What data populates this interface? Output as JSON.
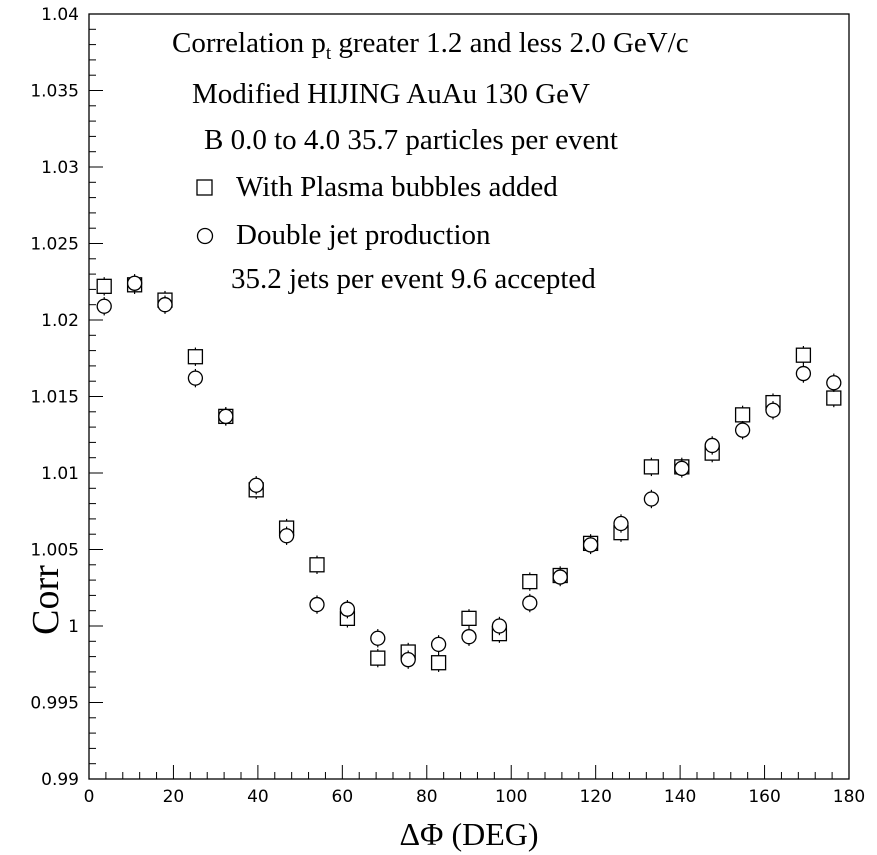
{
  "chart_data": {
    "type": "scatter",
    "xlabel": "ΔΦ (DEG)",
    "ylabel": "Corr",
    "xlim": [
      0,
      180
    ],
    "ylim": [
      0.99,
      1.04
    ],
    "x_ticks": [
      "0",
      "20",
      "40",
      "60",
      "80",
      "100",
      "120",
      "140",
      "160",
      "180"
    ],
    "y_ticks": [
      "0.99",
      "0.995",
      "1",
      "1.005",
      "1.01",
      "1.015",
      "1.02",
      "1.025",
      "1.03",
      "1.035",
      "1.04"
    ],
    "grid": false,
    "annotation": {
      "line1_pre": "Correlation p",
      "line1_sub": "t",
      "line1_post": " greater 1.2 and less 2.0 GeV/c",
      "line2": "Modified HIJING AuAu 130 GeV",
      "line3": "B 0.0 to 4.0  35.7 particles per event",
      "line6": "35.2 jets per event 9.6 accepted"
    },
    "series": [
      {
        "name": "With Plasma bubbles added",
        "marker": "square",
        "x": [
          3.6,
          10.8,
          18.0,
          25.2,
          32.4,
          39.6,
          46.8,
          54.0,
          61.2,
          68.4,
          75.6,
          82.8,
          90.0,
          97.2,
          104.4,
          111.6,
          118.8,
          126.0,
          133.2,
          140.4,
          147.6,
          154.8,
          162.0,
          169.2,
          176.4
        ],
        "y": [
          1.0222,
          1.0223,
          1.0213,
          1.0176,
          1.0137,
          1.0089,
          1.0064,
          1.004,
          1.0005,
          0.9979,
          0.9983,
          0.9976,
          1.0005,
          0.9995,
          1.0029,
          1.0033,
          1.0054,
          1.0061,
          1.0104,
          1.0104,
          1.0113,
          1.0138,
          1.0146,
          1.0177,
          1.0149
        ],
        "err": [
          0.0006,
          0.0006,
          0.0006,
          0.0006,
          0.0006,
          0.0006,
          0.0006,
          0.0006,
          0.0006,
          0.0006,
          0.0006,
          0.0006,
          0.0006,
          0.0006,
          0.0006,
          0.0006,
          0.0006,
          0.0006,
          0.0006,
          0.0006,
          0.0006,
          0.0006,
          0.0006,
          0.0006,
          0.0006
        ]
      },
      {
        "name": "Double jet production",
        "marker": "circle",
        "x": [
          3.6,
          10.8,
          18.0,
          25.2,
          32.4,
          39.6,
          46.8,
          54.0,
          61.2,
          68.4,
          75.6,
          82.8,
          90.0,
          97.2,
          104.4,
          111.6,
          118.8,
          126.0,
          133.2,
          140.4,
          147.6,
          154.8,
          162.0,
          169.2,
          176.4
        ],
        "y": [
          1.0209,
          1.0224,
          1.021,
          1.0162,
          1.0137,
          1.0092,
          1.0059,
          1.0014,
          1.0011,
          0.9992,
          0.9978,
          0.9988,
          0.9993,
          1.0,
          1.0015,
          1.0032,
          1.0053,
          1.0067,
          1.0083,
          1.0103,
          1.0118,
          1.0128,
          1.0141,
          1.0165,
          1.0159
        ],
        "err": [
          0.0006,
          0.0006,
          0.0006,
          0.0006,
          0.0006,
          0.0006,
          0.0006,
          0.0006,
          0.0006,
          0.0006,
          0.0006,
          0.0006,
          0.0006,
          0.0006,
          0.0006,
          0.0006,
          0.0006,
          0.0006,
          0.0006,
          0.0006,
          0.0006,
          0.0006,
          0.0006,
          0.0006,
          0.0006
        ]
      }
    ]
  }
}
